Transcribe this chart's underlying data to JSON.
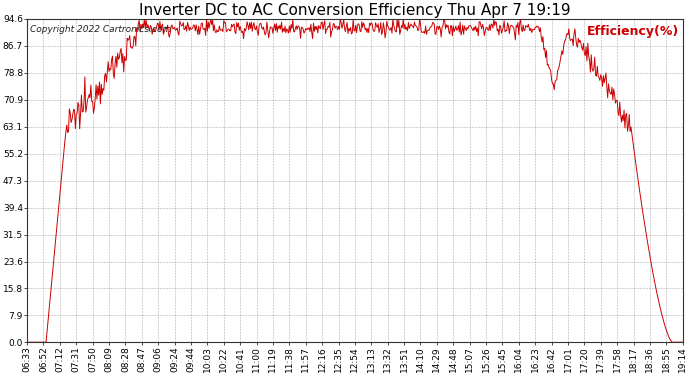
{
  "title": "Inverter DC to AC Conversion Efficiency Thu Apr 7 19:19",
  "copyright": "Copyright 2022 Cartronics.com",
  "legend_label": "Efficiency(%)",
  "line_color": "#cc0000",
  "background_color": "#ffffff",
  "grid_color": "#999999",
  "yticks": [
    0.0,
    7.9,
    15.8,
    23.6,
    31.5,
    39.4,
    47.3,
    55.2,
    63.1,
    70.9,
    78.8,
    86.7,
    94.6
  ],
  "x_tick_labels": [
    "06:33",
    "06:52",
    "07:12",
    "07:31",
    "07:50",
    "08:09",
    "08:28",
    "08:47",
    "09:06",
    "09:24",
    "09:44",
    "10:03",
    "10:22",
    "10:41",
    "11:00",
    "11:19",
    "11:38",
    "11:57",
    "12:16",
    "12:35",
    "12:54",
    "13:13",
    "13:32",
    "13:51",
    "14:10",
    "14:29",
    "14:48",
    "15:07",
    "15:26",
    "15:45",
    "16:04",
    "16:23",
    "16:42",
    "17:01",
    "17:20",
    "17:39",
    "17:58",
    "18:17",
    "18:36",
    "18:55",
    "19:14"
  ],
  "ylim": [
    0.0,
    94.6
  ],
  "title_fontsize": 11,
  "axis_fontsize": 6.5,
  "copyright_fontsize": 6.5,
  "legend_fontsize": 9
}
